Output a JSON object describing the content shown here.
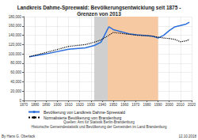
{
  "chart_data": {
    "type": "line",
    "title": "Landkreis Dahme-Spreewald: Bevölkerungsentwicklung seit 1875 -\nGrenzen von 2013",
    "x": [
      1875,
      1890,
      1910,
      1925,
      1933,
      1939,
      1946,
      1950,
      1964,
      1971,
      1981,
      1985,
      1989,
      1990,
      1995,
      2000,
      2005,
      2010,
      2015,
      2018
    ],
    "series": [
      {
        "name": "Bevölkerung von Landkreis Dahme-Spreewald",
        "color": "#2a6fdb",
        "line_style": "solid",
        "values": [
          94000,
          100000,
          110000,
          113000,
          118000,
          125000,
          158000,
          152000,
          143000,
          141000,
          139000,
          138000,
          135000,
          134000,
          140000,
          150000,
          158000,
          161000,
          164000,
          168000
        ]
      },
      {
        "name": "Normalisierte Bevölkerung von Brandenburg",
        "color": "#000000",
        "line_style": "dotted",
        "values": [
          94000,
          103000,
          116000,
          120000,
          125000,
          130000,
          140000,
          146000,
          142000,
          140000,
          139000,
          138000,
          136000,
          136000,
          134000,
          133000,
          131000,
          126000,
          128000,
          131000
        ]
      }
    ],
    "periods": [
      {
        "start": 1933,
        "end": 1945,
        "color": "#cfcfcf"
      },
      {
        "start": 1945,
        "end": 1990,
        "color": "#f7c9a3"
      }
    ],
    "xlim": [
      1870,
      2020
    ],
    "xticks": [
      1870,
      1880,
      1890,
      1900,
      1910,
      1920,
      1930,
      1940,
      1950,
      1960,
      1970,
      1980,
      1990,
      2000,
      2010,
      2020
    ],
    "ylim": [
      0,
      180000
    ],
    "yticks": [
      0,
      {
        "value": 20000,
        "label": "20,000"
      },
      {
        "value": 40000,
        "label": "40,000"
      },
      {
        "value": 60000,
        "label": "60,000"
      },
      {
        "value": 80000,
        "label": "80,000"
      },
      {
        "value": 100000,
        "label": "100,000"
      },
      {
        "value": 120000,
        "label": "120,000"
      },
      {
        "value": 140000,
        "label": "140,000"
      },
      {
        "value": 160000,
        "label": "160,000"
      },
      {
        "value": 180000,
        "label": "180,000"
      }
    ],
    "grid": true,
    "legend": "bottom",
    "author": "By Hans G. Oberlack",
    "date": "12.10.2018",
    "source": [
      "Quellen: Amt für Statistik Berlin-Brandenburg",
      "Historische Gemeindestatistik und Bevölkerung der Gemeinden im Land Brandenburg"
    ]
  }
}
